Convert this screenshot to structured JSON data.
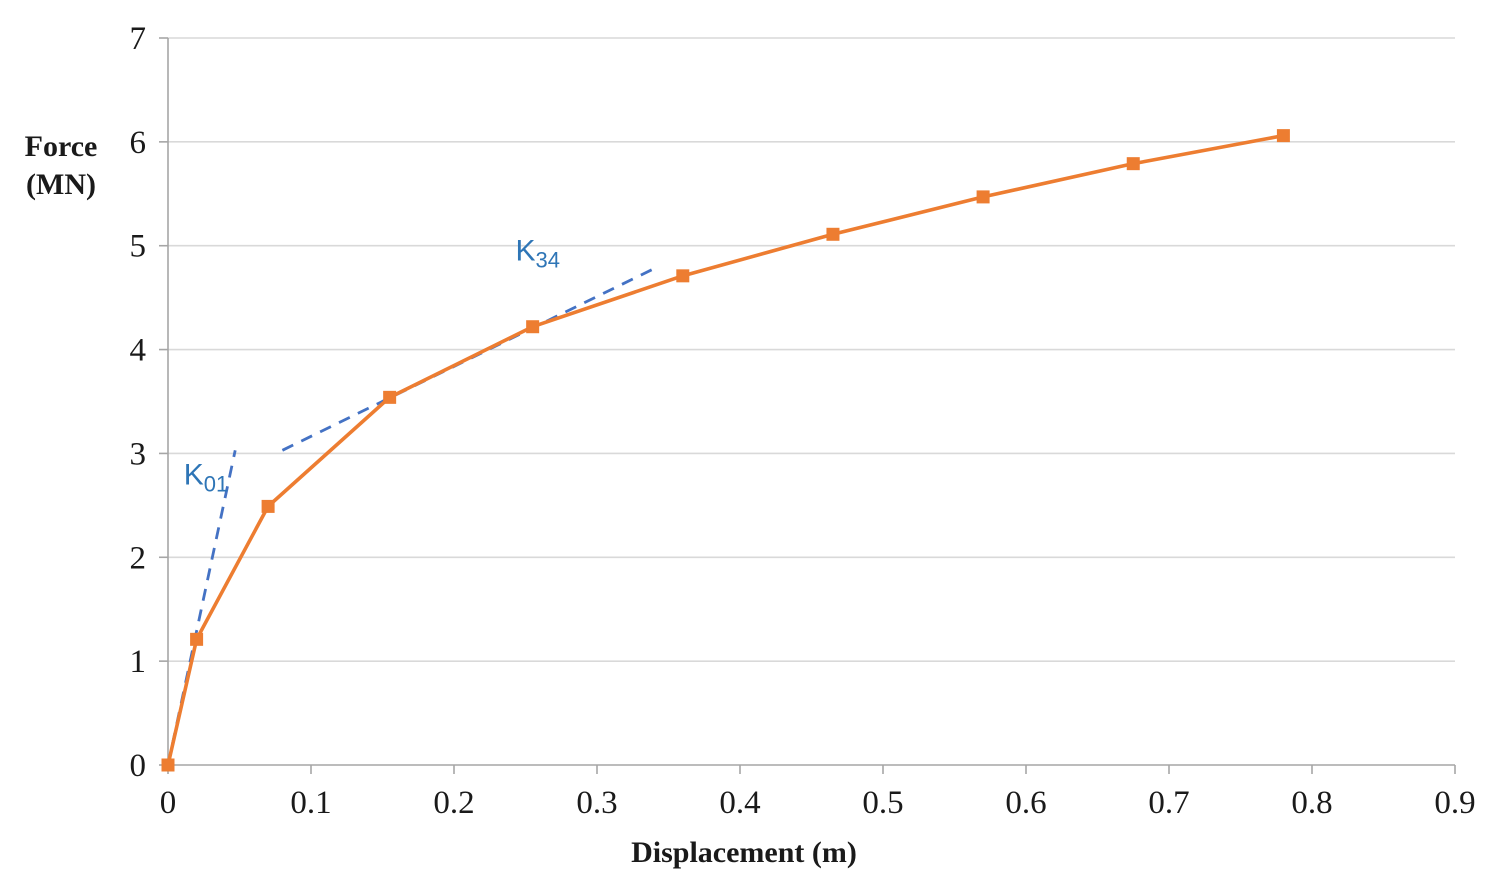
{
  "chart_data": {
    "type": "line",
    "title": "",
    "xlabel": "Displacement (m)",
    "ylabel_lines": [
      "Force",
      "(MN)"
    ],
    "xlim": [
      0,
      0.9
    ],
    "ylim": [
      0,
      7
    ],
    "x_ticks": [
      0,
      0.1,
      0.2,
      0.3,
      0.4,
      0.5,
      0.6,
      0.7,
      0.8,
      0.9
    ],
    "y_ticks": [
      0,
      1,
      2,
      3,
      4,
      5,
      6,
      7
    ],
    "grid": "horizontal",
    "legend": "none",
    "colors": {
      "series": "#ED7D31",
      "overlay": "#4472C4",
      "annotation": "#2E75B6",
      "gridline": "#D9D9D9",
      "axis": "#A6A6A6",
      "tick_label": "#1a1a1a"
    },
    "series": [
      {
        "name": "force-displacement-curve",
        "color": "#ED7D31",
        "marker": "square",
        "points": [
          [
            0,
            0
          ],
          [
            0.02,
            1.21
          ],
          [
            0.07,
            2.49
          ],
          [
            0.155,
            3.54
          ],
          [
            0.255,
            4.22
          ],
          [
            0.36,
            4.71
          ],
          [
            0.465,
            5.11
          ],
          [
            0.57,
            5.47
          ],
          [
            0.675,
            5.79
          ],
          [
            0.78,
            6.06
          ]
        ]
      }
    ],
    "overlay_lines": [
      {
        "name": "K01-stiffness-line",
        "color": "#4472C4",
        "dash": [
          12,
          9
        ],
        "points": [
          [
            0,
            0
          ],
          [
            0.047,
            3.03
          ]
        ]
      },
      {
        "name": "K34-stiffness-line",
        "color": "#4472C4",
        "dash": [
          12,
          9
        ],
        "points": [
          [
            0.08,
            3.03
          ],
          [
            0.34,
            4.78
          ]
        ]
      }
    ],
    "annotations": [
      {
        "name": "K01-label",
        "text": "K",
        "sub": "01",
        "x": 0.011,
        "y": 2.7,
        "color": "#2E75B6"
      },
      {
        "name": "K34-label",
        "text": "K",
        "sub": "34",
        "x": 0.243,
        "y": 4.86,
        "color": "#2E75B6"
      }
    ]
  }
}
